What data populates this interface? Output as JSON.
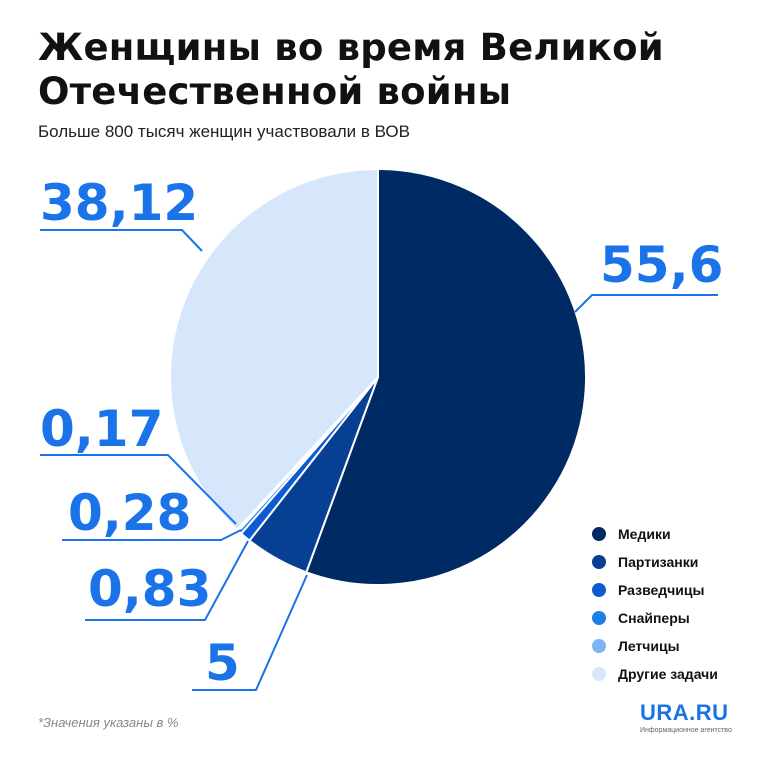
{
  "header": {
    "title": "Женщины во время Великой Отечественной войны",
    "subtitle": "Больше 800 тысяч женщин участвовали в ВОВ"
  },
  "chart_data": {
    "type": "pie",
    "slices": [
      {
        "name": "Медики",
        "value": 55.6,
        "label": "55,6",
        "color": "#002a63"
      },
      {
        "name": "Партизанки",
        "value": 5,
        "label": "5",
        "color": "#073f93"
      },
      {
        "name": "Разведчицы",
        "value": 0.83,
        "label": "0,83",
        "color": "#0d5bd1"
      },
      {
        "name": "Снайперы",
        "value": 0.28,
        "label": "0,28",
        "color": "#1f7fe8"
      },
      {
        "name": "Летчицы",
        "value": 0.17,
        "label": "0,17",
        "color": "#7fb3f2"
      },
      {
        "name": "Другие задачи",
        "value": 38.12,
        "label": "38,12",
        "color": "#d6e6fb"
      }
    ],
    "legend_position": "bottom-right"
  },
  "footnote": "*Значения указаны в %",
  "logo": {
    "brand": "URA.RU",
    "tagline": "Информационное агентство"
  },
  "colors": {
    "accent": "#1a73e8",
    "leader": "#1a73e8"
  }
}
